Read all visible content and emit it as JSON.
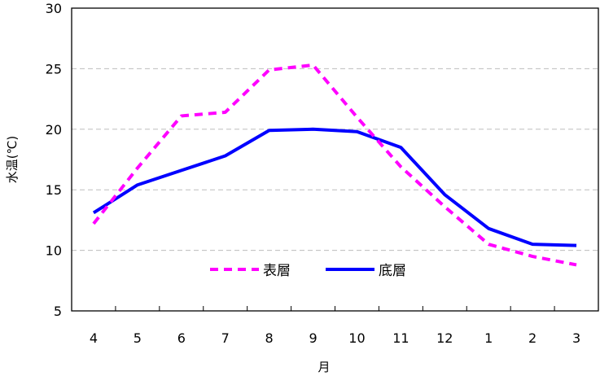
{
  "chart_data": {
    "type": "line",
    "title": "",
    "xlabel": "月",
    "ylabel": "水温(℃)",
    "categories": [
      "4",
      "5",
      "6",
      "7",
      "8",
      "9",
      "10",
      "11",
      "12",
      "1",
      "2",
      "3"
    ],
    "ylim": [
      5,
      30
    ],
    "yticks": [
      5,
      10,
      15,
      20,
      25,
      30
    ],
    "grid": "horizontal-dashed",
    "legend_position": "bottom-center",
    "series": [
      {
        "name": "表層",
        "color": "#ff00ff",
        "style": "dashed",
        "values": [
          12.2,
          16.8,
          21.1,
          21.4,
          24.9,
          25.3,
          21.0,
          16.9,
          13.6,
          10.5,
          9.5,
          8.8
        ]
      },
      {
        "name": "底層",
        "color": "#0000ff",
        "style": "solid",
        "values": [
          13.1,
          15.4,
          16.6,
          17.8,
          19.9,
          20.0,
          19.8,
          18.5,
          14.6,
          11.8,
          10.5,
          10.4
        ]
      }
    ]
  }
}
